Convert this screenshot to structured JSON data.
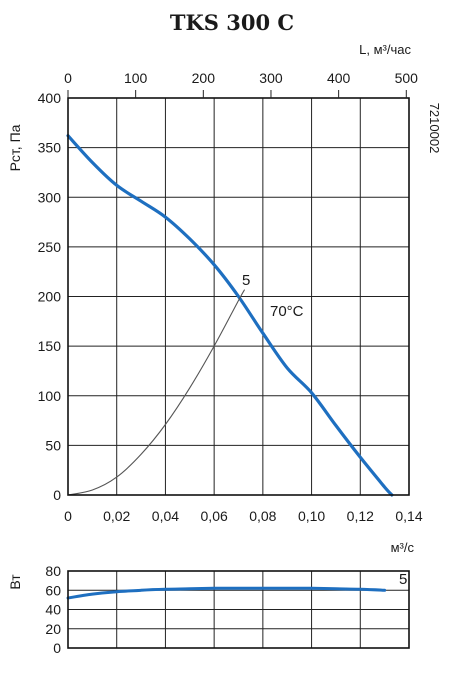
{
  "title": "TKS 300 C",
  "code": "7210002",
  "chart_data": [
    {
      "type": "line",
      "title": "TKS 300 C",
      "xlabel": "м³/с",
      "ylabel": "Рст, Па",
      "xlim": [
        0,
        0.14
      ],
      "ylim": [
        0,
        400
      ],
      "x_ticks": [
        "0",
        "0,02",
        "0,04",
        "0,06",
        "0,08",
        "0,10",
        "0,12",
        "0,14"
      ],
      "y_ticks": [
        "0",
        "50",
        "100",
        "150",
        "200",
        "250",
        "300",
        "350",
        "400"
      ],
      "top_axis": {
        "label": "L, м³/час",
        "ticks": [
          "0",
          "100",
          "200",
          "300",
          "400",
          "500"
        ],
        "lim": [
          0,
          500
        ]
      },
      "grid": true,
      "series": [
        {
          "name": "70°C",
          "color": "#1e6fc0",
          "x": [
            0,
            0.01,
            0.02,
            0.03,
            0.04,
            0.05,
            0.06,
            0.07,
            0.08,
            0.09,
            0.1,
            0.11,
            0.12,
            0.13,
            0.133
          ],
          "y": [
            362,
            335,
            312,
            296,
            280,
            258,
            232,
            200,
            163,
            128,
            103,
            70,
            38,
            8,
            0
          ]
        },
        {
          "name": "5",
          "color": "#555555",
          "x": [
            0,
            0.01,
            0.02,
            0.03,
            0.04,
            0.05,
            0.06,
            0.07,
            0.0725
          ],
          "y": [
            0,
            5,
            18,
            41,
            71,
            108,
            150,
            196,
            207
          ]
        }
      ],
      "annotations": [
        "5",
        "70°C"
      ]
    },
    {
      "type": "line",
      "ylabel": "Вт",
      "xlim": [
        0,
        0.14
      ],
      "ylim": [
        0,
        80
      ],
      "y_ticks": [
        "0",
        "20",
        "40",
        "60",
        "80"
      ],
      "grid": true,
      "series": [
        {
          "name": "5",
          "color": "#1e6fc0",
          "x": [
            0,
            0.01,
            0.02,
            0.03,
            0.04,
            0.05,
            0.06,
            0.07,
            0.08,
            0.09,
            0.1,
            0.11,
            0.12,
            0.13
          ],
          "y": [
            52,
            56,
            58.5,
            60,
            61,
            61.5,
            62,
            62,
            62,
            62,
            62,
            61.5,
            61,
            60
          ]
        }
      ],
      "annotations": [
        "5"
      ]
    }
  ]
}
